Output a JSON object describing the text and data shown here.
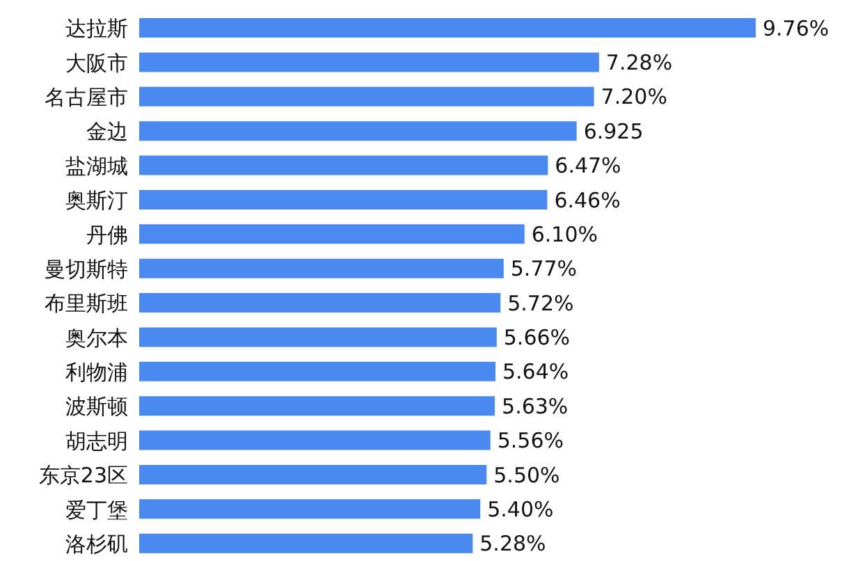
{
  "chart_data": {
    "type": "bar",
    "orientation": "horizontal",
    "categories": [
      "达拉斯",
      "大阪市",
      "名古屋市",
      "金边",
      "盐湖城",
      "奥斯汀",
      "丹佛",
      "曼切斯特",
      "布里斯班",
      "奥尔本",
      "利物浦",
      "波斯顿",
      "胡志明",
      "东京23区",
      "爱丁堡",
      "洛杉矶"
    ],
    "values": [
      9.76,
      7.28,
      7.2,
      6.925,
      6.47,
      6.46,
      6.1,
      5.77,
      5.72,
      5.66,
      5.64,
      5.63,
      5.56,
      5.5,
      5.4,
      5.28
    ],
    "value_labels": [
      "9.76%",
      "7.28%",
      "7.20%",
      "6.925",
      "6.47%",
      "6.46%",
      "6.10%",
      "5.77%",
      "5.72%",
      "5.66%",
      "5.64%",
      "5.63%",
      "5.56%",
      "5.50%",
      "5.40%",
      "5.28%"
    ],
    "color": "#4a89ef"
  }
}
